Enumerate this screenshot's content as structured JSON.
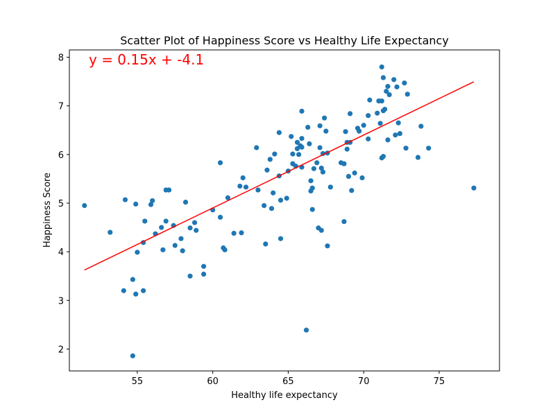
{
  "chart_data": {
    "type": "scatter",
    "title": "Scatter Plot of Happiness Score vs Healthy Life Expectancy",
    "xlabel": "Healthy life expectancy",
    "ylabel": "Happiness Score",
    "xlim": [
      50.5,
      79.0
    ],
    "ylim": [
      1.55,
      8.15
    ],
    "xticks": [
      55,
      60,
      65,
      70,
      75
    ],
    "yticks": [
      2,
      3,
      4,
      5,
      6,
      7,
      8
    ],
    "grid": false,
    "point_color": "#1f77b4",
    "line_color": "#ff0000",
    "annotation": {
      "text": "y = 0.15x + -4.1",
      "color": "#ff0000"
    },
    "regression": {
      "slope": 0.15,
      "intercept": -4.1,
      "x_range": [
        51.5,
        77.3
      ]
    },
    "points": [
      [
        51.5,
        4.95
      ],
      [
        53.2,
        4.4
      ],
      [
        54.1,
        3.2
      ],
      [
        54.2,
        5.07
      ],
      [
        54.7,
        1.86
      ],
      [
        54.7,
        3.43
      ],
      [
        54.9,
        4.98
      ],
      [
        54.9,
        3.13
      ],
      [
        55.0,
        3.99
      ],
      [
        55.4,
        3.2
      ],
      [
        55.4,
        4.19
      ],
      [
        55.5,
        4.63
      ],
      [
        55.9,
        4.97
      ],
      [
        56.0,
        5.05
      ],
      [
        56.2,
        4.37
      ],
      [
        56.6,
        4.5
      ],
      [
        56.7,
        4.04
      ],
      [
        56.9,
        4.63
      ],
      [
        56.9,
        5.27
      ],
      [
        57.1,
        5.27
      ],
      [
        57.4,
        4.54
      ],
      [
        57.5,
        4.13
      ],
      [
        57.9,
        4.27
      ],
      [
        58.0,
        4.02
      ],
      [
        58.2,
        5.02
      ],
      [
        58.5,
        4.49
      ],
      [
        58.5,
        3.5
      ],
      [
        58.8,
        4.6
      ],
      [
        58.9,
        4.44
      ],
      [
        59.4,
        3.7
      ],
      [
        59.4,
        3.54
      ],
      [
        60.0,
        4.86
      ],
      [
        60.5,
        4.71
      ],
      [
        60.5,
        5.83
      ],
      [
        60.7,
        4.08
      ],
      [
        60.8,
        4.04
      ],
      [
        61.0,
        5.11
      ],
      [
        61.4,
        4.38
      ],
      [
        61.8,
        5.35
      ],
      [
        61.9,
        4.39
      ],
      [
        62.0,
        5.52
      ],
      [
        62.2,
        5.33
      ],
      [
        62.9,
        6.14
      ],
      [
        63.0,
        5.27
      ],
      [
        63.4,
        4.95
      ],
      [
        63.5,
        4.16
      ],
      [
        63.6,
        5.68
      ],
      [
        63.8,
        5.9
      ],
      [
        63.9,
        4.89
      ],
      [
        64.0,
        5.21
      ],
      [
        64.1,
        6.01
      ],
      [
        64.4,
        6.45
      ],
      [
        64.4,
        5.56
      ],
      [
        64.5,
        5.06
      ],
      [
        64.5,
        4.27
      ],
      [
        64.9,
        5.1
      ],
      [
        65.0,
        5.66
      ],
      [
        65.2,
        6.37
      ],
      [
        65.3,
        6.01
      ],
      [
        65.3,
        5.81
      ],
      [
        65.5,
        5.76
      ],
      [
        65.6,
        6.12
      ],
      [
        65.6,
        6.25
      ],
      [
        65.7,
        6.0
      ],
      [
        65.8,
        6.18
      ],
      [
        65.9,
        6.33
      ],
      [
        65.9,
        6.15
      ],
      [
        65.9,
        6.89
      ],
      [
        65.9,
        5.74
      ],
      [
        66.2,
        2.39
      ],
      [
        66.3,
        6.56
      ],
      [
        66.4,
        6.22
      ],
      [
        66.5,
        5.25
      ],
      [
        66.5,
        5.46
      ],
      [
        66.6,
        5.31
      ],
      [
        66.6,
        4.87
      ],
      [
        66.7,
        5.71
      ],
      [
        66.9,
        5.83
      ],
      [
        67.0,
        4.49
      ],
      [
        67.1,
        6.59
      ],
      [
        67.1,
        6.14
      ],
      [
        67.2,
        5.72
      ],
      [
        67.2,
        4.44
      ],
      [
        67.3,
        6.02
      ],
      [
        67.3,
        5.64
      ],
      [
        67.4,
        6.75
      ],
      [
        67.5,
        6.48
      ],
      [
        67.6,
        6.03
      ],
      [
        67.6,
        4.12
      ],
      [
        67.8,
        5.33
      ],
      [
        68.5,
        5.83
      ],
      [
        68.7,
        5.81
      ],
      [
        68.7,
        4.62
      ],
      [
        68.8,
        6.47
      ],
      [
        68.9,
        6.25
      ],
      [
        68.9,
        6.11
      ],
      [
        69.0,
        5.55
      ],
      [
        69.1,
        6.84
      ],
      [
        69.1,
        6.25
      ],
      [
        69.2,
        5.26
      ],
      [
        69.4,
        5.62
      ],
      [
        69.6,
        6.54
      ],
      [
        69.7,
        6.48
      ],
      [
        69.9,
        5.52
      ],
      [
        70.0,
        6.6
      ],
      [
        70.3,
        6.8
      ],
      [
        70.3,
        6.32
      ],
      [
        70.4,
        7.12
      ],
      [
        70.9,
        6.85
      ],
      [
        71.0,
        7.1
      ],
      [
        71.1,
        6.64
      ],
      [
        71.2,
        7.8
      ],
      [
        71.2,
        7.1
      ],
      [
        71.2,
        5.93
      ],
      [
        71.3,
        7.58
      ],
      [
        71.3,
        6.9
      ],
      [
        71.3,
        5.96
      ],
      [
        71.4,
        6.93
      ],
      [
        71.5,
        7.3
      ],
      [
        71.6,
        7.4
      ],
      [
        71.6,
        6.3
      ],
      [
        71.7,
        7.23
      ],
      [
        72.0,
        7.54
      ],
      [
        72.1,
        6.4
      ],
      [
        72.2,
        7.39
      ],
      [
        72.3,
        6.65
      ],
      [
        72.4,
        6.43
      ],
      [
        72.7,
        7.47
      ],
      [
        72.8,
        6.13
      ],
      [
        72.9,
        7.24
      ],
      [
        73.6,
        5.94
      ],
      [
        73.8,
        6.58
      ],
      [
        74.3,
        6.13
      ],
      [
        77.3,
        5.31
      ]
    ]
  }
}
